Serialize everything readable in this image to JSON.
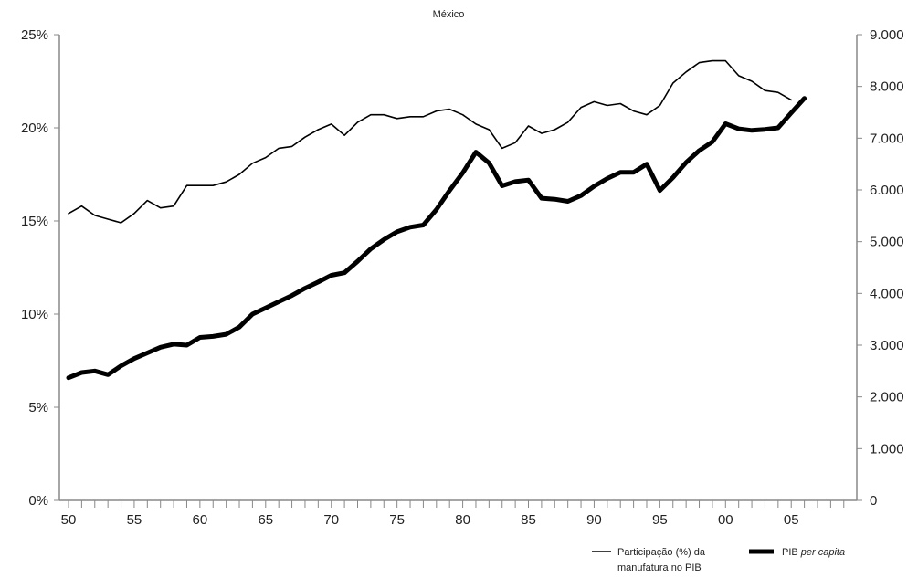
{
  "chart_data": {
    "type": "line",
    "title": "México",
    "xlabel": "",
    "ylabel_left": "",
    "ylabel_right": "",
    "x_tick_labels": [
      "50",
      "55",
      "60",
      "65",
      "70",
      "75",
      "80",
      "85",
      "90",
      "95",
      "00",
      "05"
    ],
    "y_left_ticks": [
      "0%",
      "5%",
      "10%",
      "15%",
      "20%",
      "25%"
    ],
    "y_right_ticks": [
      "0",
      "1.000",
      "2.000",
      "3.000",
      "4.000",
      "5.000",
      "6.000",
      "7.000",
      "8.000",
      "9.000"
    ],
    "x_range": [
      1950,
      2010
    ],
    "y_left_range": [
      0,
      25
    ],
    "y_right_range": [
      0,
      9000
    ],
    "grid": false,
    "legend_position": "bottom-right",
    "series": [
      {
        "name": "Participação (%) da manufatura no PIB",
        "legend_lines": [
          "Participação (%) da",
          "manufatura no PIB"
        ],
        "axis": "left",
        "line_style": "thin",
        "color": "#000000",
        "x": [
          1950,
          1951,
          1952,
          1953,
          1954,
          1955,
          1956,
          1957,
          1958,
          1959,
          1960,
          1961,
          1962,
          1963,
          1964,
          1965,
          1966,
          1967,
          1968,
          1969,
          1970,
          1971,
          1972,
          1973,
          1974,
          1975,
          1976,
          1977,
          1978,
          1979,
          1980,
          1981,
          1982,
          1983,
          1984,
          1985,
          1986,
          1987,
          1988,
          1989,
          1990,
          1991,
          1992,
          1993,
          1994,
          1995,
          1996,
          1997,
          1998,
          1999,
          2000,
          2001,
          2002,
          2003,
          2004,
          2005
        ],
        "values": [
          15.4,
          15.8,
          15.3,
          15.1,
          14.9,
          15.4,
          16.1,
          15.7,
          15.8,
          16.9,
          16.9,
          16.9,
          17.1,
          17.5,
          18.1,
          18.4,
          18.9,
          19.0,
          19.5,
          19.9,
          20.2,
          19.6,
          20.3,
          20.7,
          20.7,
          20.5,
          20.6,
          20.6,
          20.9,
          21.0,
          20.7,
          20.2,
          19.9,
          18.9,
          19.2,
          20.1,
          19.7,
          19.9,
          20.3,
          21.1,
          21.4,
          21.2,
          21.3,
          20.9,
          20.7,
          21.2,
          22.4,
          23.0,
          23.5,
          23.6,
          23.6,
          22.8,
          22.5,
          22.0,
          21.9,
          21.5
        ]
      },
      {
        "name": "PIB per capita",
        "legend_plain": "PIB",
        "legend_italic": "per capita",
        "axis": "right",
        "line_style": "thick",
        "color": "#000000",
        "x": [
          1950,
          1951,
          1952,
          1953,
          1954,
          1955,
          1956,
          1957,
          1958,
          1959,
          1960,
          1961,
          1962,
          1963,
          1964,
          1965,
          1966,
          1967,
          1968,
          1969,
          1970,
          1971,
          1972,
          1973,
          1974,
          1975,
          1976,
          1977,
          1978,
          1979,
          1980,
          1981,
          1982,
          1983,
          1984,
          1985,
          1986,
          1987,
          1988,
          1989,
          1990,
          1991,
          1992,
          1993,
          1994,
          1995,
          1996,
          1997,
          1998,
          1999,
          2000,
          2001,
          2002,
          2003,
          2004,
          2005,
          2006
        ],
        "values": [
          2370,
          2470,
          2500,
          2430,
          2600,
          2740,
          2850,
          2960,
          3020,
          3000,
          3150,
          3170,
          3210,
          3350,
          3600,
          3720,
          3840,
          3960,
          4100,
          4220,
          4350,
          4400,
          4620,
          4860,
          5040,
          5190,
          5280,
          5320,
          5620,
          5990,
          6330,
          6730,
          6520,
          6080,
          6160,
          6190,
          5840,
          5820,
          5780,
          5890,
          6070,
          6220,
          6340,
          6340,
          6500,
          5990,
          6240,
          6530,
          6760,
          6930,
          7280,
          7180,
          7150,
          7170,
          7200,
          7490,
          7770
        ]
      }
    ]
  }
}
